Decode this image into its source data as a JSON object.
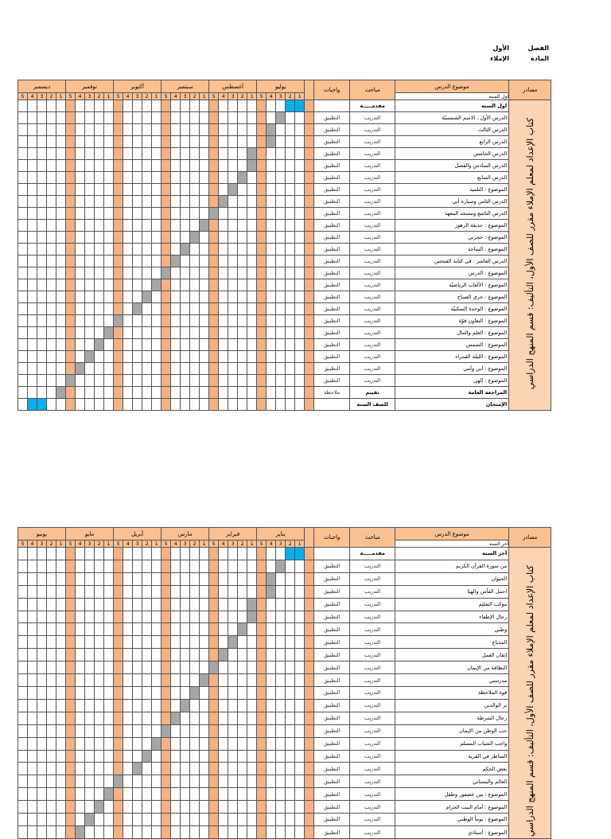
{
  "header": {
    "semester_label": "الفصل",
    "semester": "الأول",
    "subject_label": "المادة",
    "subject": "الإملاء"
  },
  "tables": [
    {
      "sources": "مصادر",
      "topic_header": "موضوع الدرس",
      "topic_sub": "اول السنه",
      "study": "مباحث",
      "homework": "واجبات",
      "sources_text": "كتاب الإعداد لمعلم الإملاء مقرر للصف الأول، التأليف: قسم المنهج الدراسي",
      "months": [
        "يوليو",
        "أغسطس",
        "سبتمبر",
        "أكتوبر",
        "نوفمبر",
        "ديسمبر"
      ],
      "weeks": [
        1,
        2,
        3,
        4,
        5
      ],
      "rows": [
        {
          "topic": "اول السنه",
          "study": "مقدمـــــة"
        },
        {
          "topic": "الدرس الأول : الاسم الشمسيّة",
          "study": "التدريب",
          "homework": "التطبيق"
        },
        {
          "topic": "الدرس الثالث",
          "study": "التدريب",
          "homework": "التطبيق"
        },
        {
          "topic": "الدرس الرابع",
          "study": "التدريب",
          "homework": "التطبيق"
        },
        {
          "topic": "الدرس الخامس",
          "study": "التدريب",
          "homework": "التطبيق"
        },
        {
          "topic": "الدرس السادس والفصل",
          "study": "التدريب",
          "homework": "التطبيق"
        },
        {
          "topic": "الدرس السابع",
          "study": "التدريب",
          "homework": "التطبيق"
        },
        {
          "topic": "الموضوع : التلميذ",
          "study": "التدريب",
          "homework": "التطبيق"
        },
        {
          "topic": "الدرس الثامن وسيارة أبي",
          "study": "التدريب",
          "homework": "التطبيق"
        },
        {
          "topic": "الدرس التاسع ومسجد المعهد",
          "study": "التدريب",
          "homework": "التطبيق"
        },
        {
          "topic": "الموضوع : حديقة الزهور",
          "study": "التدريب",
          "homework": "التطبيق"
        },
        {
          "topic": "الموضوع : حجرتي",
          "study": "التدريب",
          "homework": "التطبيق"
        },
        {
          "topic": "الموضوع : الساحة",
          "study": "التدريب",
          "homework": "التطبيق"
        },
        {
          "topic": "الدرس العاشر : في كتابة الفتحتين",
          "study": "التدريب",
          "homework": "التطبيق"
        },
        {
          "topic": "الموضوع : الدرس",
          "study": "التدريب",
          "homework": "التطبيق"
        },
        {
          "topic": "الموضوع : الألعاب الرياضيّة",
          "study": "التدريب",
          "homework": "التطبيق"
        },
        {
          "topic": "الموضوع : جري الصباح",
          "study": "التدريب",
          "homework": "التطبيق"
        },
        {
          "topic": "الموضوع : الوحدة السكنيّة",
          "study": "التدريب",
          "homework": "التطبيق"
        },
        {
          "topic": "الموضوع : التعاون قوّة",
          "study": "التدريب",
          "homework": "التطبيق"
        },
        {
          "topic": "الموضوع : العلم والمال",
          "study": "التدريب",
          "homework": "التطبيق"
        },
        {
          "topic": "الموضوع : الشمس",
          "study": "التدريب",
          "homework": "التطبيق"
        },
        {
          "topic": "الموضوع : الليلة القمراء",
          "study": "التدريب",
          "homework": "التطبيق"
        },
        {
          "topic": "الموضوع : أبي وأمي",
          "study": "التدريب",
          "homework": "التطبيق"
        },
        {
          "topic": "الموضوع : إلهي",
          "study": "التدريب",
          "homework": "التطبيق"
        },
        {
          "topic": "المراجعة العامة",
          "study": "تقييم",
          "homework": "ملاحظة"
        },
        {
          "topic": "الإمتحان",
          "study": "للصف السنة"
        }
      ]
    },
    {
      "sources": "مصادر",
      "topic_header": "موضوع الدرس",
      "topic_sub": "آخر السنه",
      "study": "مباحث",
      "homework": "واجبات",
      "sources_text": "كتاب الإعداد لمعلم الإملاء مقرر للصف الأول، التأليف: قسم المنهج الدراسي",
      "months": [
        "يناير",
        "فبراير",
        "مارس",
        "أبريل",
        "مايو",
        "يونيو"
      ],
      "weeks": [
        1,
        2,
        3,
        4,
        5
      ],
      "rows": [
        {
          "topic": "آخر السنه",
          "study": "مقدمـــــة"
        },
        {
          "topic": "من سورة القرآن الكريم",
          "study": "التدريب",
          "homework": "التطبيق"
        },
        {
          "topic": "الحيوان",
          "study": "التدريب",
          "homework": "التطبيق"
        },
        {
          "topic": "احمل الفأس والهيا",
          "study": "التدريب",
          "homework": "التطبيق"
        },
        {
          "topic": "موكب التعليم",
          "study": "التدريب",
          "homework": "التطبيق"
        },
        {
          "topic": "رجال الإطفاء",
          "study": "التدريب",
          "homework": "التطبيق"
        },
        {
          "topic": "وطني",
          "study": "التدريب",
          "homework": "التطبيق"
        },
        {
          "topic": "المذياع",
          "study": "التدريب",
          "homework": "التطبيق"
        },
        {
          "topic": "إتقان العمل",
          "study": "التدريب",
          "homework": "التطبيق"
        },
        {
          "topic": "النظافة من الإيمان",
          "study": "التدريب",
          "homework": "التطبيق"
        },
        {
          "topic": "مدرستي",
          "study": "التدريب",
          "homework": "التطبيق"
        },
        {
          "topic": "قوة الملاحظة",
          "study": "التدريب",
          "homework": "التطبيق"
        },
        {
          "topic": "بر الوالدين",
          "study": "التدريب",
          "homework": "التطبيق"
        },
        {
          "topic": "رجال الشرطة",
          "study": "التدريب",
          "homework": "التطبيق"
        },
        {
          "topic": "حب الوطن من الإيمان",
          "study": "التدريب",
          "homework": "التطبيق"
        },
        {
          "topic": "واجب الشباب المسلم",
          "study": "التدريب",
          "homework": "التطبيق"
        },
        {
          "topic": "المناظر في القرية",
          "study": "التدريب",
          "homework": "التطبيق"
        },
        {
          "topic": "بعض الحكم",
          "study": "التدريب",
          "homework": "التطبيق"
        },
        {
          "topic": "العالم والبستاني",
          "study": "التدريب",
          "homework": "التطبيق"
        },
        {
          "topic": "الموضوع : بين عصفور وطفل",
          "study": "التدريب",
          "homework": "التطبيق"
        },
        {
          "topic": "الموضوع : أمام البيت الحرام",
          "study": "التدريب",
          "homework": "التطبيق"
        },
        {
          "topic": "الموضوع : يوماً الوطني",
          "study": "التدريب",
          "homework": "التطبيق"
        },
        {
          "topic": "الموضوع : أستاذي",
          "study": "التدريب",
          "homework": "التطبيق"
        }
      ]
    }
  ]
}
